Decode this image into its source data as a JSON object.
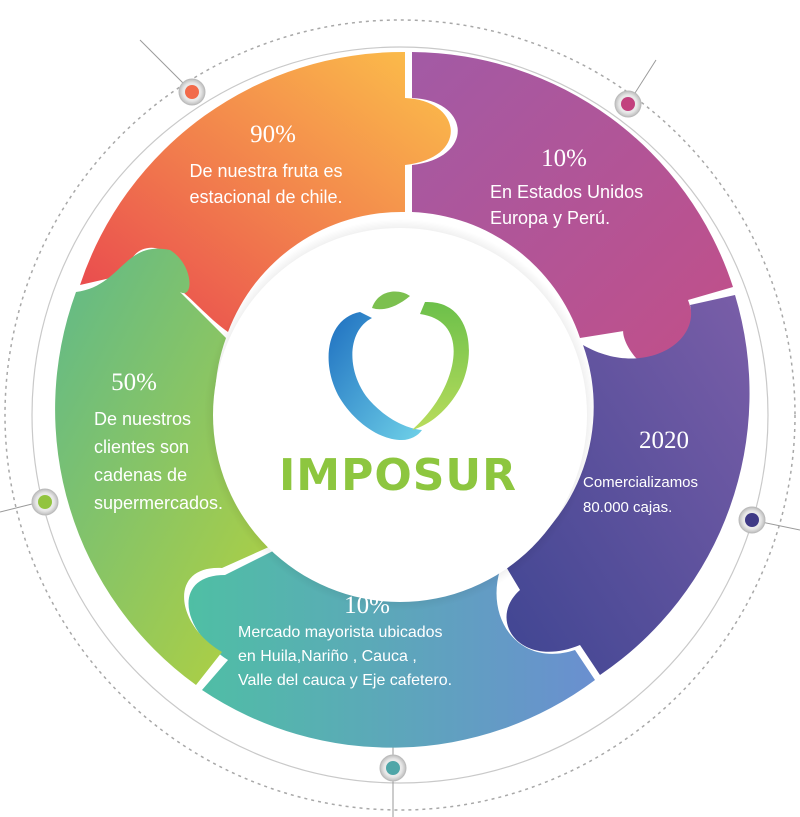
{
  "brand": {
    "name": "IMPOSUR"
  },
  "segments": [
    {
      "id": "top-left",
      "value": "90%",
      "lines": [
        "De nuestra fruta es",
        "estacional de chile."
      ]
    },
    {
      "id": "top-right",
      "value": "10%",
      "lines": [
        "En Estados Unidos",
        "Europa y Perú."
      ]
    },
    {
      "id": "right",
      "value": "2020",
      "lines": [
        "Comercializamos",
        "80.000 cajas."
      ]
    },
    {
      "id": "bottom",
      "value": "10%",
      "lines": [
        "Mercado mayorista ubicados",
        "en Huila,Nariño , Cauca ,",
        "Valle del cauca  y Eje cafetero."
      ]
    },
    {
      "id": "left",
      "value": "50%",
      "lines": [
        "De nuestros",
        "clientes son",
        "cadenas de",
        "supermercados."
      ]
    }
  ],
  "colors": {
    "orange_start": "#e8424f",
    "orange_end": "#fcc24a",
    "purple_start": "#a25aa5",
    "purple_end": "#c24f88",
    "indigo_start": "#3f4592",
    "indigo_end": "#7a5ea8",
    "teal_start": "#4fbfa4",
    "teal_end": "#6a8fd0",
    "green_start": "#5fb98a",
    "green_end": "#b7d23b",
    "brand_green": "#8dc63f",
    "apple_blue": "#2a8fd4"
  }
}
